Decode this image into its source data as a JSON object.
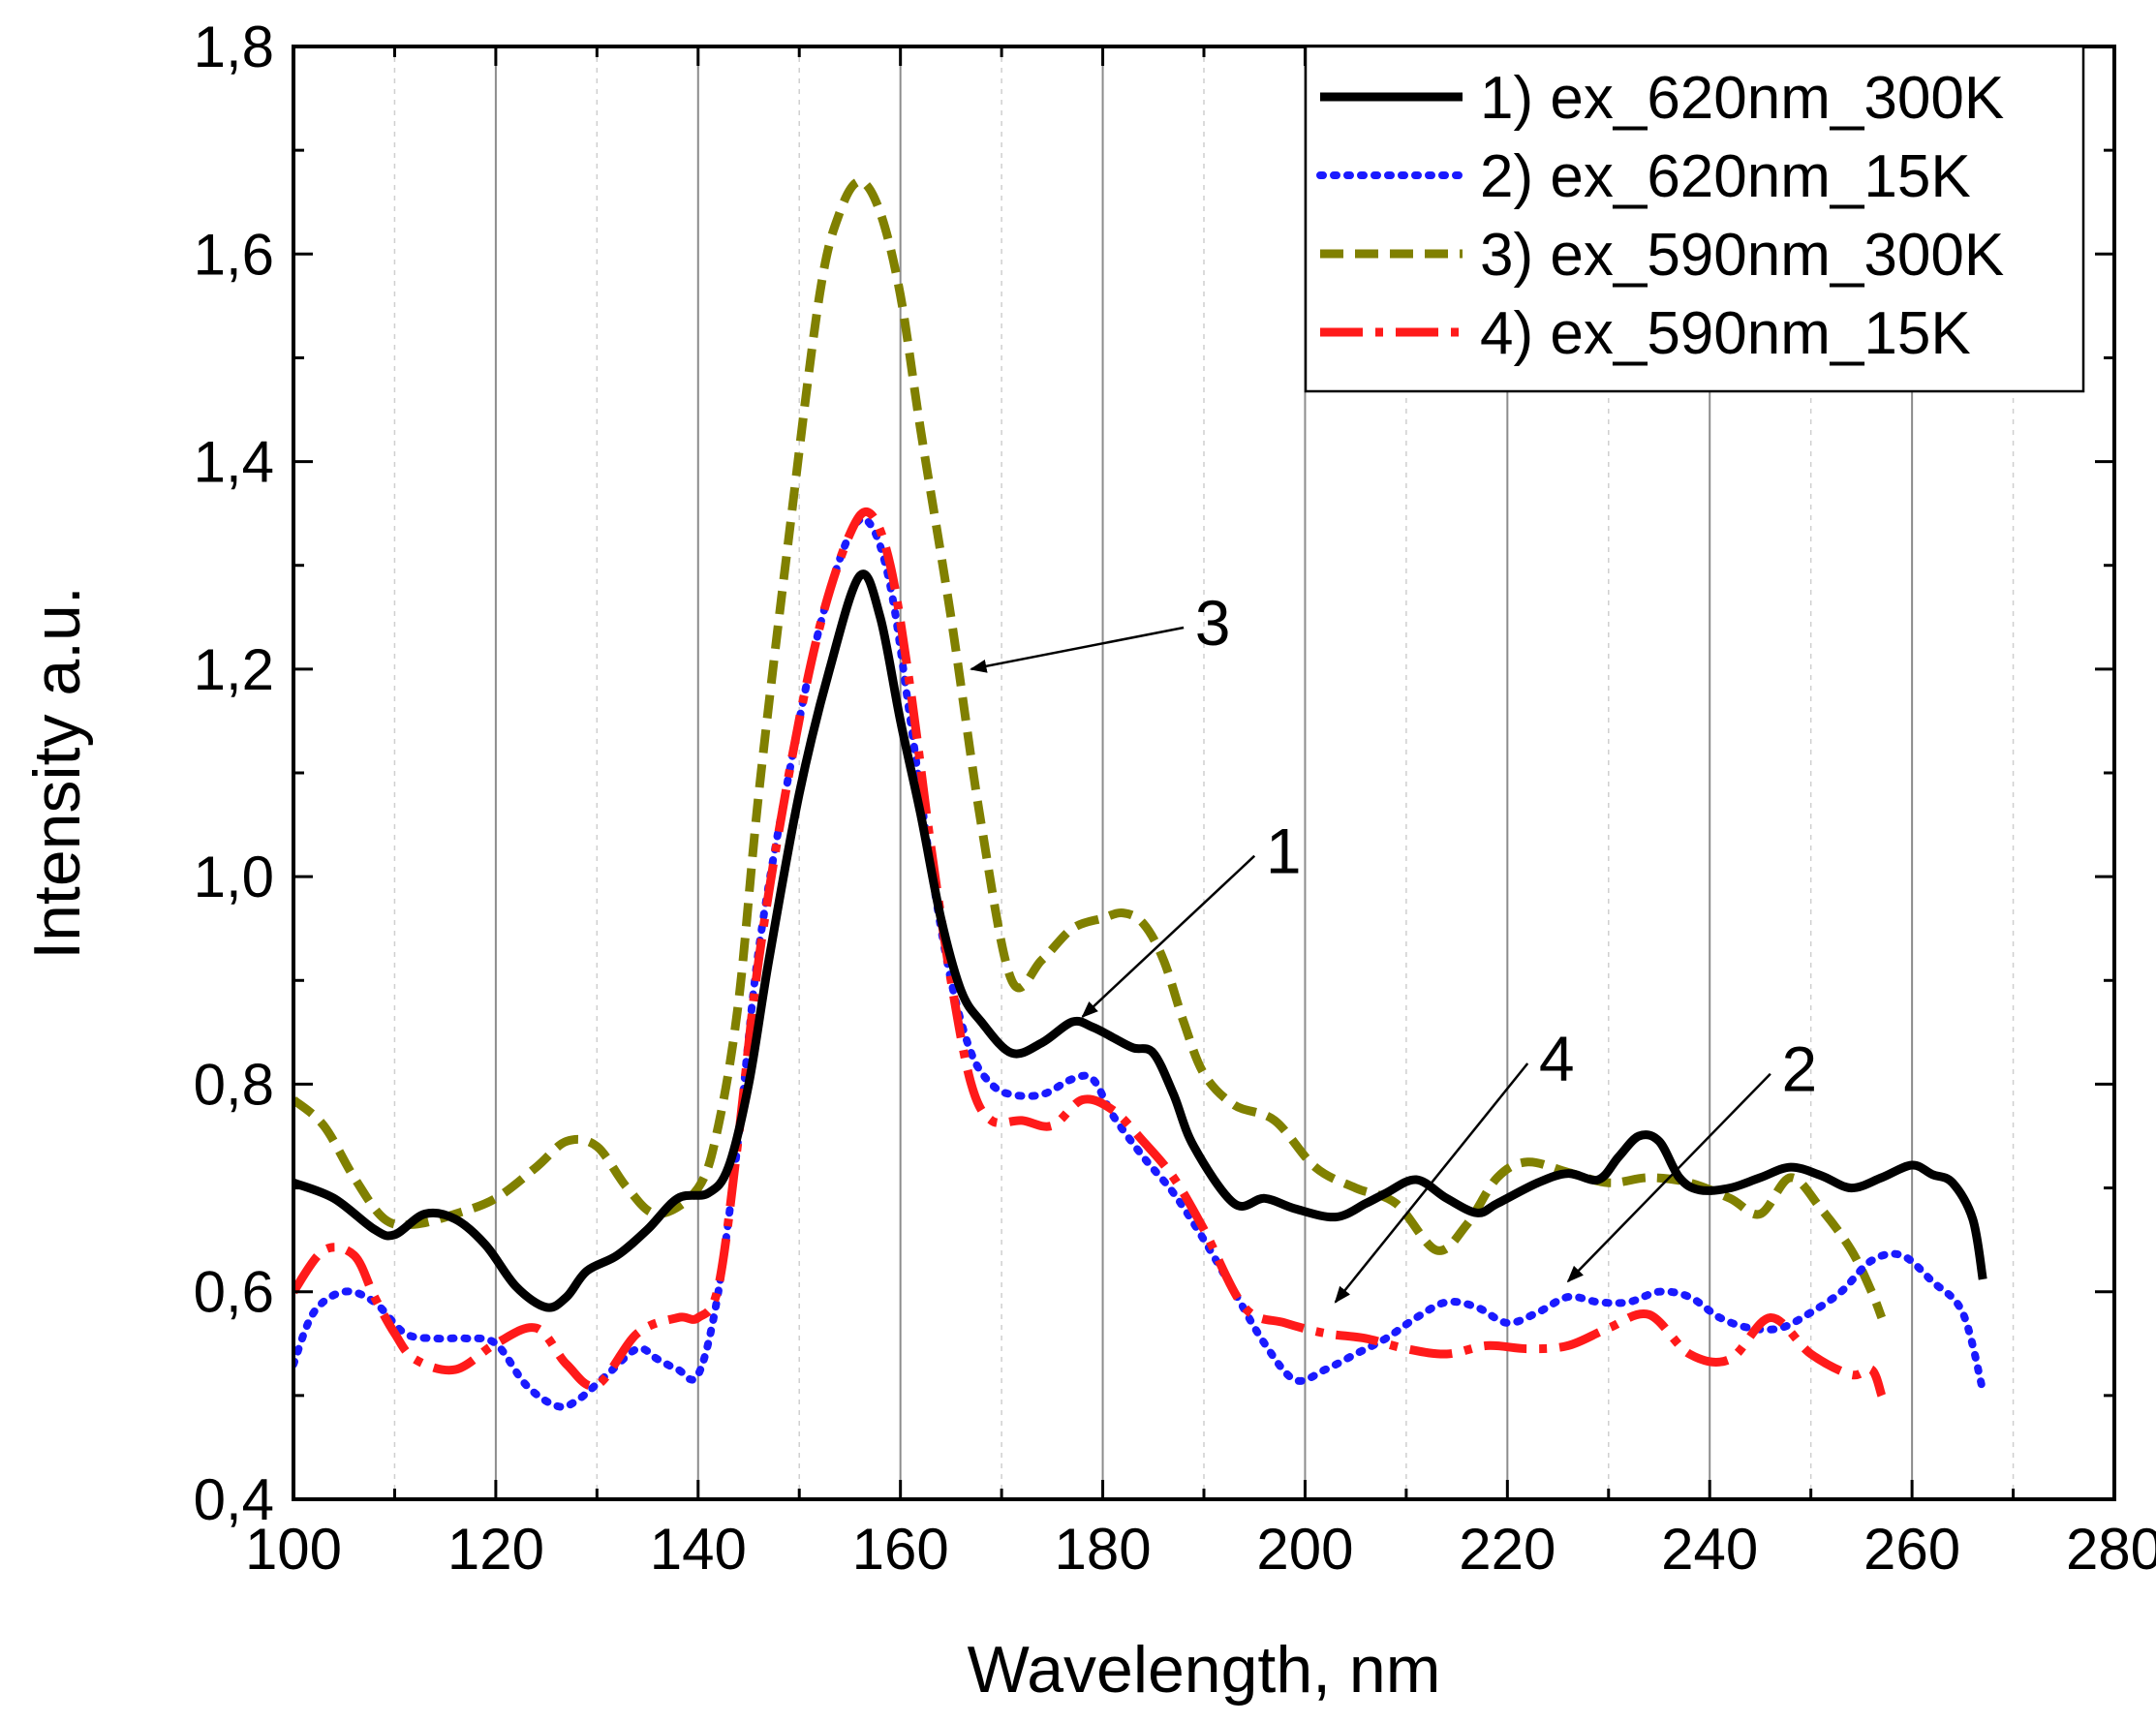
{
  "chart_data": {
    "type": "line",
    "title": "",
    "xlabel": "Wavelength, nm",
    "ylabel": "Intensity a.u.",
    "xlim": [
      100,
      280
    ],
    "ylim": [
      0.4,
      1.8
    ],
    "x_ticks": [
      100,
      120,
      140,
      160,
      180,
      200,
      220,
      240,
      260,
      280
    ],
    "x_tick_labels": [
      "100",
      "120",
      "140",
      "160",
      "180",
      "200",
      "220",
      "240",
      "260",
      "280"
    ],
    "y_ticks": [
      0.4,
      0.6,
      0.8,
      1.0,
      1.2,
      1.4,
      1.6,
      1.8
    ],
    "y_tick_labels": [
      "0,4",
      "0,6",
      "0,8",
      "1,0",
      "1,2",
      "1,4",
      "1,6",
      "1,8"
    ],
    "grid": "vertical",
    "legend_position": "top-right",
    "series": [
      {
        "name": "1) ex_620nm_300K",
        "color": "#000000",
        "style": "solid",
        "x": [
          100,
          104,
          108,
          110,
          113,
          116,
          119,
          122,
          125,
          127,
          129,
          132,
          135,
          138,
          141,
          143,
          145,
          147,
          150,
          153,
          156,
          158,
          160,
          162,
          164,
          166,
          168,
          171,
          174,
          177,
          179,
          181,
          183,
          185,
          187,
          189,
          193,
          196,
          199,
          203,
          206,
          208,
          211,
          214,
          217,
          219,
          223,
          226,
          229,
          231,
          233,
          235,
          237,
          239,
          242,
          245,
          248,
          251,
          254,
          257,
          260,
          262,
          264,
          266,
          267
        ],
        "y": [
          0.705,
          0.69,
          0.66,
          0.655,
          0.675,
          0.67,
          0.645,
          0.605,
          0.585,
          0.595,
          0.62,
          0.635,
          0.66,
          0.69,
          0.695,
          0.72,
          0.8,
          0.92,
          1.08,
          1.2,
          1.29,
          1.25,
          1.15,
          1.06,
          0.96,
          0.89,
          0.86,
          0.83,
          0.84,
          0.86,
          0.855,
          0.845,
          0.835,
          0.83,
          0.79,
          0.74,
          0.685,
          0.69,
          0.68,
          0.672,
          0.685,
          0.695,
          0.708,
          0.69,
          0.676,
          0.685,
          0.705,
          0.714,
          0.708,
          0.73,
          0.75,
          0.745,
          0.71,
          0.698,
          0.7,
          0.71,
          0.72,
          0.712,
          0.7,
          0.71,
          0.722,
          0.713,
          0.705,
          0.67,
          0.612
        ]
      },
      {
        "name": "2) ex_620nm_15K",
        "color": "#1a1aff",
        "style": "dotted",
        "x": [
          100,
          102,
          105,
          108,
          111,
          114,
          117,
          120,
          123,
          126,
          128,
          131,
          134,
          136,
          138,
          140,
          142,
          144,
          146,
          149,
          152,
          155,
          157,
          159,
          161,
          163,
          165,
          167,
          169,
          171,
          174,
          177,
          179,
          181,
          184,
          187,
          190,
          193,
          196,
          199,
          202,
          205,
          208,
          211,
          214,
          217,
          220,
          223,
          226,
          229,
          232,
          235,
          238,
          241,
          244,
          247,
          250,
          253,
          256,
          259,
          262,
          265,
          267
        ],
        "y": [
          0.53,
          0.58,
          0.6,
          0.59,
          0.56,
          0.555,
          0.555,
          0.55,
          0.51,
          0.49,
          0.495,
          0.52,
          0.545,
          0.535,
          0.525,
          0.52,
          0.6,
          0.75,
          0.93,
          1.1,
          1.24,
          1.33,
          1.34,
          1.28,
          1.15,
          1.01,
          0.9,
          0.83,
          0.8,
          0.79,
          0.79,
          0.805,
          0.805,
          0.77,
          0.73,
          0.695,
          0.65,
          0.6,
          0.55,
          0.515,
          0.525,
          0.54,
          0.555,
          0.575,
          0.59,
          0.585,
          0.57,
          0.58,
          0.595,
          0.59,
          0.59,
          0.6,
          0.595,
          0.575,
          0.565,
          0.565,
          0.58,
          0.6,
          0.63,
          0.635,
          0.61,
          0.58,
          0.505
        ]
      },
      {
        "name": "3) ex_590nm_300K",
        "color": "#808000",
        "style": "dashed",
        "x": [
          100,
          103,
          106,
          109,
          112,
          116,
          120,
          124,
          127,
          130,
          133,
          136,
          140,
          142,
          144,
          146,
          149,
          152,
          154,
          156,
          158,
          160,
          162,
          165,
          168,
          171,
          174,
          177,
          180,
          182,
          184,
          186,
          188,
          190,
          193,
          197,
          201,
          205,
          209,
          213,
          216,
          219,
          222,
          226,
          230,
          234,
          238,
          242,
          245,
          248,
          251,
          254,
          256,
          257
        ],
        "y": [
          0.785,
          0.76,
          0.71,
          0.67,
          0.665,
          0.675,
          0.69,
          0.72,
          0.745,
          0.74,
          0.7,
          0.675,
          0.7,
          0.76,
          0.88,
          1.08,
          1.33,
          1.56,
          1.64,
          1.67,
          1.64,
          1.56,
          1.43,
          1.25,
          1.05,
          0.9,
          0.92,
          0.95,
          0.96,
          0.965,
          0.955,
          0.92,
          0.86,
          0.81,
          0.78,
          0.765,
          0.72,
          0.7,
          0.685,
          0.64,
          0.665,
          0.71,
          0.725,
          0.715,
          0.705,
          0.71,
          0.705,
          0.69,
          0.675,
          0.71,
          0.68,
          0.64,
          0.6,
          0.575
        ]
      },
      {
        "name": "4) ex_590nm_15K",
        "color": "#ff1a1a",
        "style": "dashdot",
        "x": [
          100,
          103,
          106,
          108,
          110,
          112,
          116,
          120,
          124,
          127,
          130,
          134,
          138,
          140,
          142,
          144,
          146,
          149,
          152,
          155,
          157,
          159,
          161,
          163,
          165,
          167,
          169,
          172,
          175,
          178,
          181,
          184,
          187,
          190,
          194,
          198,
          202,
          206,
          210,
          214,
          218,
          222,
          226,
          230,
          234,
          238,
          242,
          246,
          250,
          254,
          256,
          257
        ],
        "y": [
          0.6,
          0.64,
          0.635,
          0.595,
          0.56,
          0.535,
          0.525,
          0.55,
          0.565,
          0.53,
          0.51,
          0.56,
          0.575,
          0.575,
          0.605,
          0.75,
          0.92,
          1.1,
          1.24,
          1.33,
          1.35,
          1.3,
          1.18,
          1.03,
          0.9,
          0.8,
          0.765,
          0.765,
          0.76,
          0.785,
          0.775,
          0.745,
          0.71,
          0.66,
          0.585,
          0.57,
          0.56,
          0.555,
          0.545,
          0.54,
          0.548,
          0.545,
          0.548,
          0.565,
          0.578,
          0.54,
          0.535,
          0.575,
          0.54,
          0.52,
          0.525,
          0.5
        ]
      }
    ],
    "annotations": [
      {
        "label": "3",
        "from": [
          188,
          1.24
        ],
        "to": [
          167,
          1.2
        ]
      },
      {
        "label": "1",
        "from": [
          195,
          1.02
        ],
        "to": [
          178,
          0.865
        ]
      },
      {
        "label": "4",
        "from": [
          222,
          0.82
        ],
        "to": [
          203,
          0.59
        ]
      },
      {
        "label": "2",
        "from": [
          246,
          0.81
        ],
        "to": [
          226,
          0.61
        ]
      }
    ]
  }
}
